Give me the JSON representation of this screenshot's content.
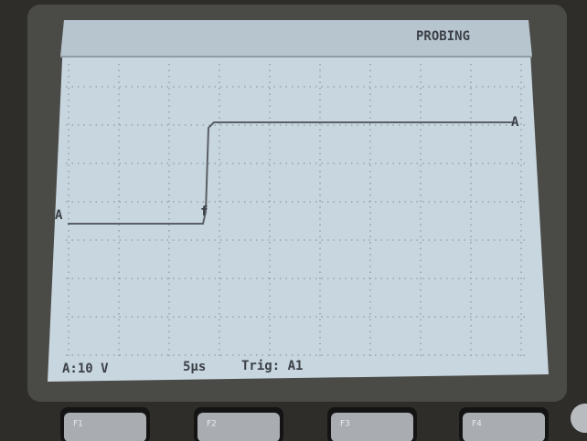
{
  "screen": {
    "header": "PROBING",
    "channel_marker_left": "A",
    "channel_marker_right": "A",
    "trigger_marker": "f",
    "status": {
      "scale": "A:10 V",
      "timebase": "5µs",
      "trigger": "Trig: A1"
    }
  },
  "buttons": [
    "F1",
    "F2",
    "F3",
    "F4"
  ]
}
